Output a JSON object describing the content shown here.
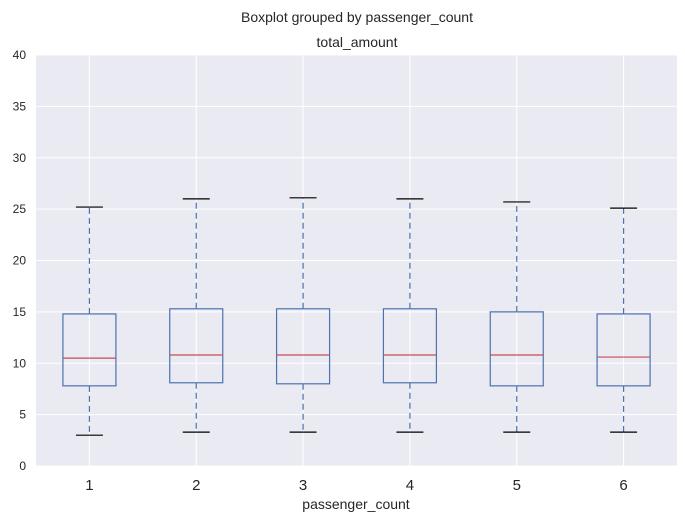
{
  "chart_data": {
    "type": "boxplot",
    "suptitle": "Boxplot grouped by passenger_count",
    "title": "total_amount",
    "xlabel": "passenger_count",
    "ylabel": "",
    "ylim": [
      0,
      40
    ],
    "yticks": [
      "0",
      "5",
      "10",
      "15",
      "20",
      "25",
      "30",
      "35",
      "40"
    ],
    "grid": true,
    "categories": [
      "1",
      "2",
      "3",
      "4",
      "5",
      "6"
    ],
    "boxes": [
      {
        "category": "1",
        "whisker_low": 3.0,
        "q1": 7.8,
        "median": 10.5,
        "q3": 14.8,
        "whisker_high": 25.2
      },
      {
        "category": "2",
        "whisker_low": 3.3,
        "q1": 8.1,
        "median": 10.8,
        "q3": 15.3,
        "whisker_high": 26.0
      },
      {
        "category": "3",
        "whisker_low": 3.3,
        "q1": 8.0,
        "median": 10.8,
        "q3": 15.3,
        "whisker_high": 26.1
      },
      {
        "category": "4",
        "whisker_low": 3.3,
        "q1": 8.1,
        "median": 10.8,
        "q3": 15.3,
        "whisker_high": 26.0
      },
      {
        "category": "5",
        "whisker_low": 3.3,
        "q1": 7.8,
        "median": 10.8,
        "q3": 15.0,
        "whisker_high": 25.7
      },
      {
        "category": "6",
        "whisker_low": 3.3,
        "q1": 7.8,
        "median": 10.6,
        "q3": 14.8,
        "whisker_high": 25.1
      }
    ],
    "colors": {
      "plot_background": "#EAEAF2",
      "gridline": "#FFFFFF",
      "box": "#4C72B0",
      "median": "#C44E52",
      "cap": "#000000"
    }
  }
}
